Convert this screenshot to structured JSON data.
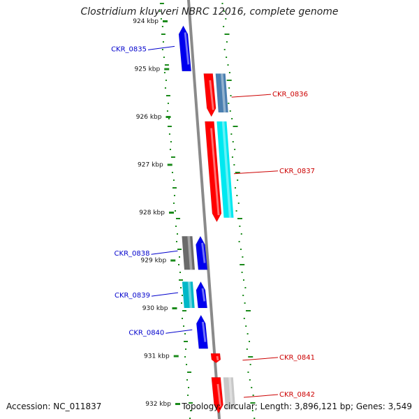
{
  "title": "Clostridium kluyveri NBRC 12016, complete genome",
  "accession": "Accession: NC_011837",
  "summary": "Topology: circular; Length: 3,896,121 bp; Genes: 3,549",
  "scale": {
    "unit": "kbp",
    "ticks": [
      {
        "kb": 924,
        "label": "924 kbp"
      },
      {
        "kb": 925,
        "label": "925 kbp"
      },
      {
        "kb": 926,
        "label": "926 kbp"
      },
      {
        "kb": 927,
        "label": "927 kbp"
      },
      {
        "kb": 928,
        "label": "928 kbp"
      },
      {
        "kb": 929,
        "label": "929 kbp"
      },
      {
        "kb": 930,
        "label": "930 kbp"
      },
      {
        "kb": 931,
        "label": "931 kbp"
      },
      {
        "kb": 932,
        "label": "932 kbp"
      }
    ]
  },
  "colors": {
    "minus_strand_label": "#0000cc",
    "plus_strand_label": "#cc0000",
    "backbone": "#8a8a8a",
    "gc_dots": "#1a8a1a"
  },
  "genes": [
    {
      "label": "CKR_0835",
      "strand": "-",
      "start_kb": 924.1,
      "end_kb": 925.05
    },
    {
      "label": "CKR_0836",
      "strand": "+",
      "start_kb": 925.1,
      "end_kb": 926.0
    },
    {
      "label": "CKR_0837",
      "strand": "+",
      "start_kb": 926.1,
      "end_kb": 928.2
    },
    {
      "label": "CKR_0838",
      "strand": "-",
      "start_kb": 928.5,
      "end_kb": 929.2
    },
    {
      "label": "CKR_0839",
      "strand": "-",
      "start_kb": 929.45,
      "end_kb": 930.0
    },
    {
      "label": "CKR_0840",
      "strand": "-",
      "start_kb": 930.15,
      "end_kb": 930.85
    },
    {
      "label": "CKR_0841",
      "strand": "+",
      "start_kb": 930.95,
      "end_kb": 931.15
    },
    {
      "label": "CKR_0842",
      "strand": "+",
      "start_kb": 931.45,
      "end_kb": 932.2
    }
  ]
}
